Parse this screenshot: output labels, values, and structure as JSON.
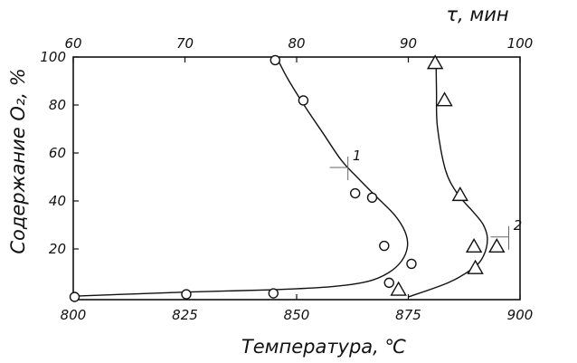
{
  "chart_data": {
    "type": "scatter",
    "xlabel": "Температура, ℃",
    "ylabel": "Содержание O₂, %",
    "x2label": "τ, мин",
    "xlim": [
      800,
      900
    ],
    "x2lim": [
      60,
      100
    ],
    "ylim": [
      0,
      100
    ],
    "xticks": [
      800,
      825,
      850,
      875,
      900
    ],
    "x2ticks": [
      60,
      70,
      80,
      90,
      100
    ],
    "yticks": [
      20,
      40,
      60,
      80,
      100
    ],
    "grid": false,
    "series": [
      {
        "name": "1",
        "marker": "circle",
        "points": [
          [
            845.2,
            98.7
          ],
          [
            851.5,
            81.9
          ],
          [
            863.1,
            43.2
          ],
          [
            866.9,
            41.4
          ],
          [
            869.6,
            21.3
          ],
          [
            875.7,
            13.8
          ],
          [
            870.7,
            5.9
          ],
          [
            800.3,
            0
          ],
          [
            825.3,
            1.1
          ],
          [
            844.8,
            1.5
          ]
        ],
        "curve": [
          [
            845.5,
            100
          ],
          [
            848,
            91
          ],
          [
            852,
            79
          ],
          [
            856,
            68
          ],
          [
            860,
            57
          ],
          [
            864,
            49
          ],
          [
            868,
            41.5
          ],
          [
            872,
            34
          ],
          [
            874.3,
            27
          ],
          [
            874.8,
            21
          ],
          [
            873.5,
            15
          ],
          [
            870.5,
            10
          ],
          [
            866,
            6.5
          ],
          [
            858,
            4.3
          ],
          [
            845,
            3
          ],
          [
            825,
            2
          ],
          [
            800,
            0.3
          ]
        ]
      },
      {
        "name": "2",
        "marker": "triangle",
        "points": [
          [
            881.0,
            97.5
          ],
          [
            883.1,
            82
          ],
          [
            886.6,
            42.5
          ],
          [
            889.7,
            21
          ],
          [
            894.8,
            21
          ],
          [
            890.0,
            12
          ],
          [
            872.8,
            3
          ]
        ],
        "curve": [
          [
            881.2,
            100
          ],
          [
            881.3,
            86
          ],
          [
            881.5,
            71
          ],
          [
            883.3,
            53
          ],
          [
            886,
            43
          ],
          [
            889.5,
            35.5
          ],
          [
            891.8,
            30
          ],
          [
            892.7,
            24
          ],
          [
            891.8,
            17
          ],
          [
            889.5,
            12
          ],
          [
            884,
            6
          ],
          [
            875,
            0
          ]
        ]
      }
    ],
    "annotations": [
      {
        "text": "1",
        "x": 863.5,
        "y": 57
      },
      {
        "text": "2",
        "x": 899.5,
        "y": 28
      }
    ]
  }
}
